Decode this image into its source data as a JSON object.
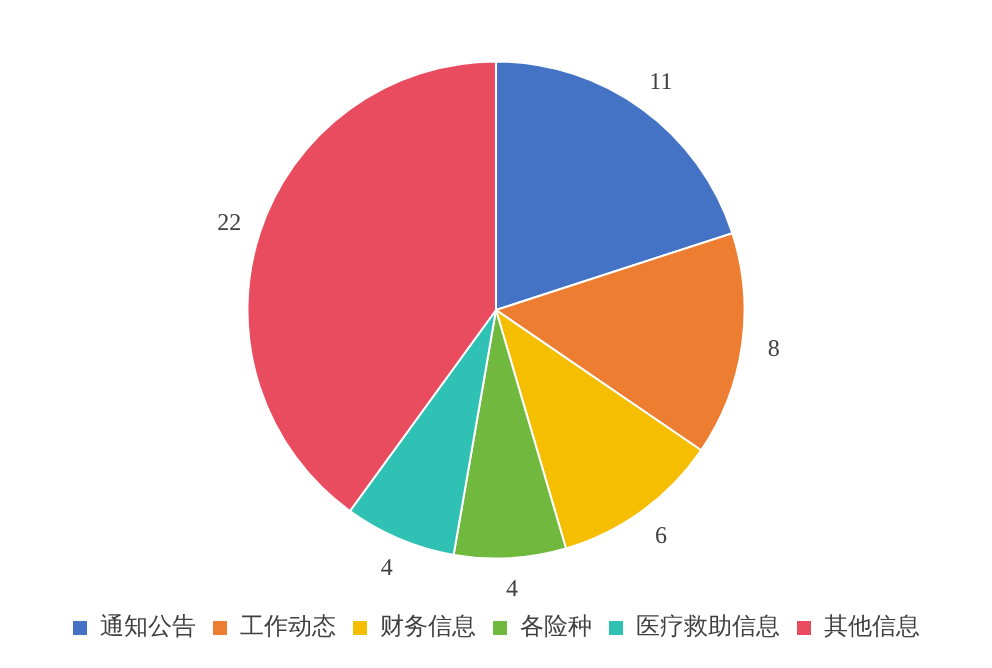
{
  "chart_data": {
    "type": "pie",
    "categories": [
      "通知公告",
      "工作动态",
      "财务信息",
      "各险种",
      "医疗救助信息",
      "其他信息"
    ],
    "values": [
      11,
      8,
      6,
      4,
      4,
      22
    ],
    "colors": [
      "#4472c4",
      "#ed7d31",
      "#f5be00",
      "#70b83e",
      "#2fc2b4",
      "#e84c5e"
    ],
    "data_labels": true,
    "legend": "bottom"
  }
}
